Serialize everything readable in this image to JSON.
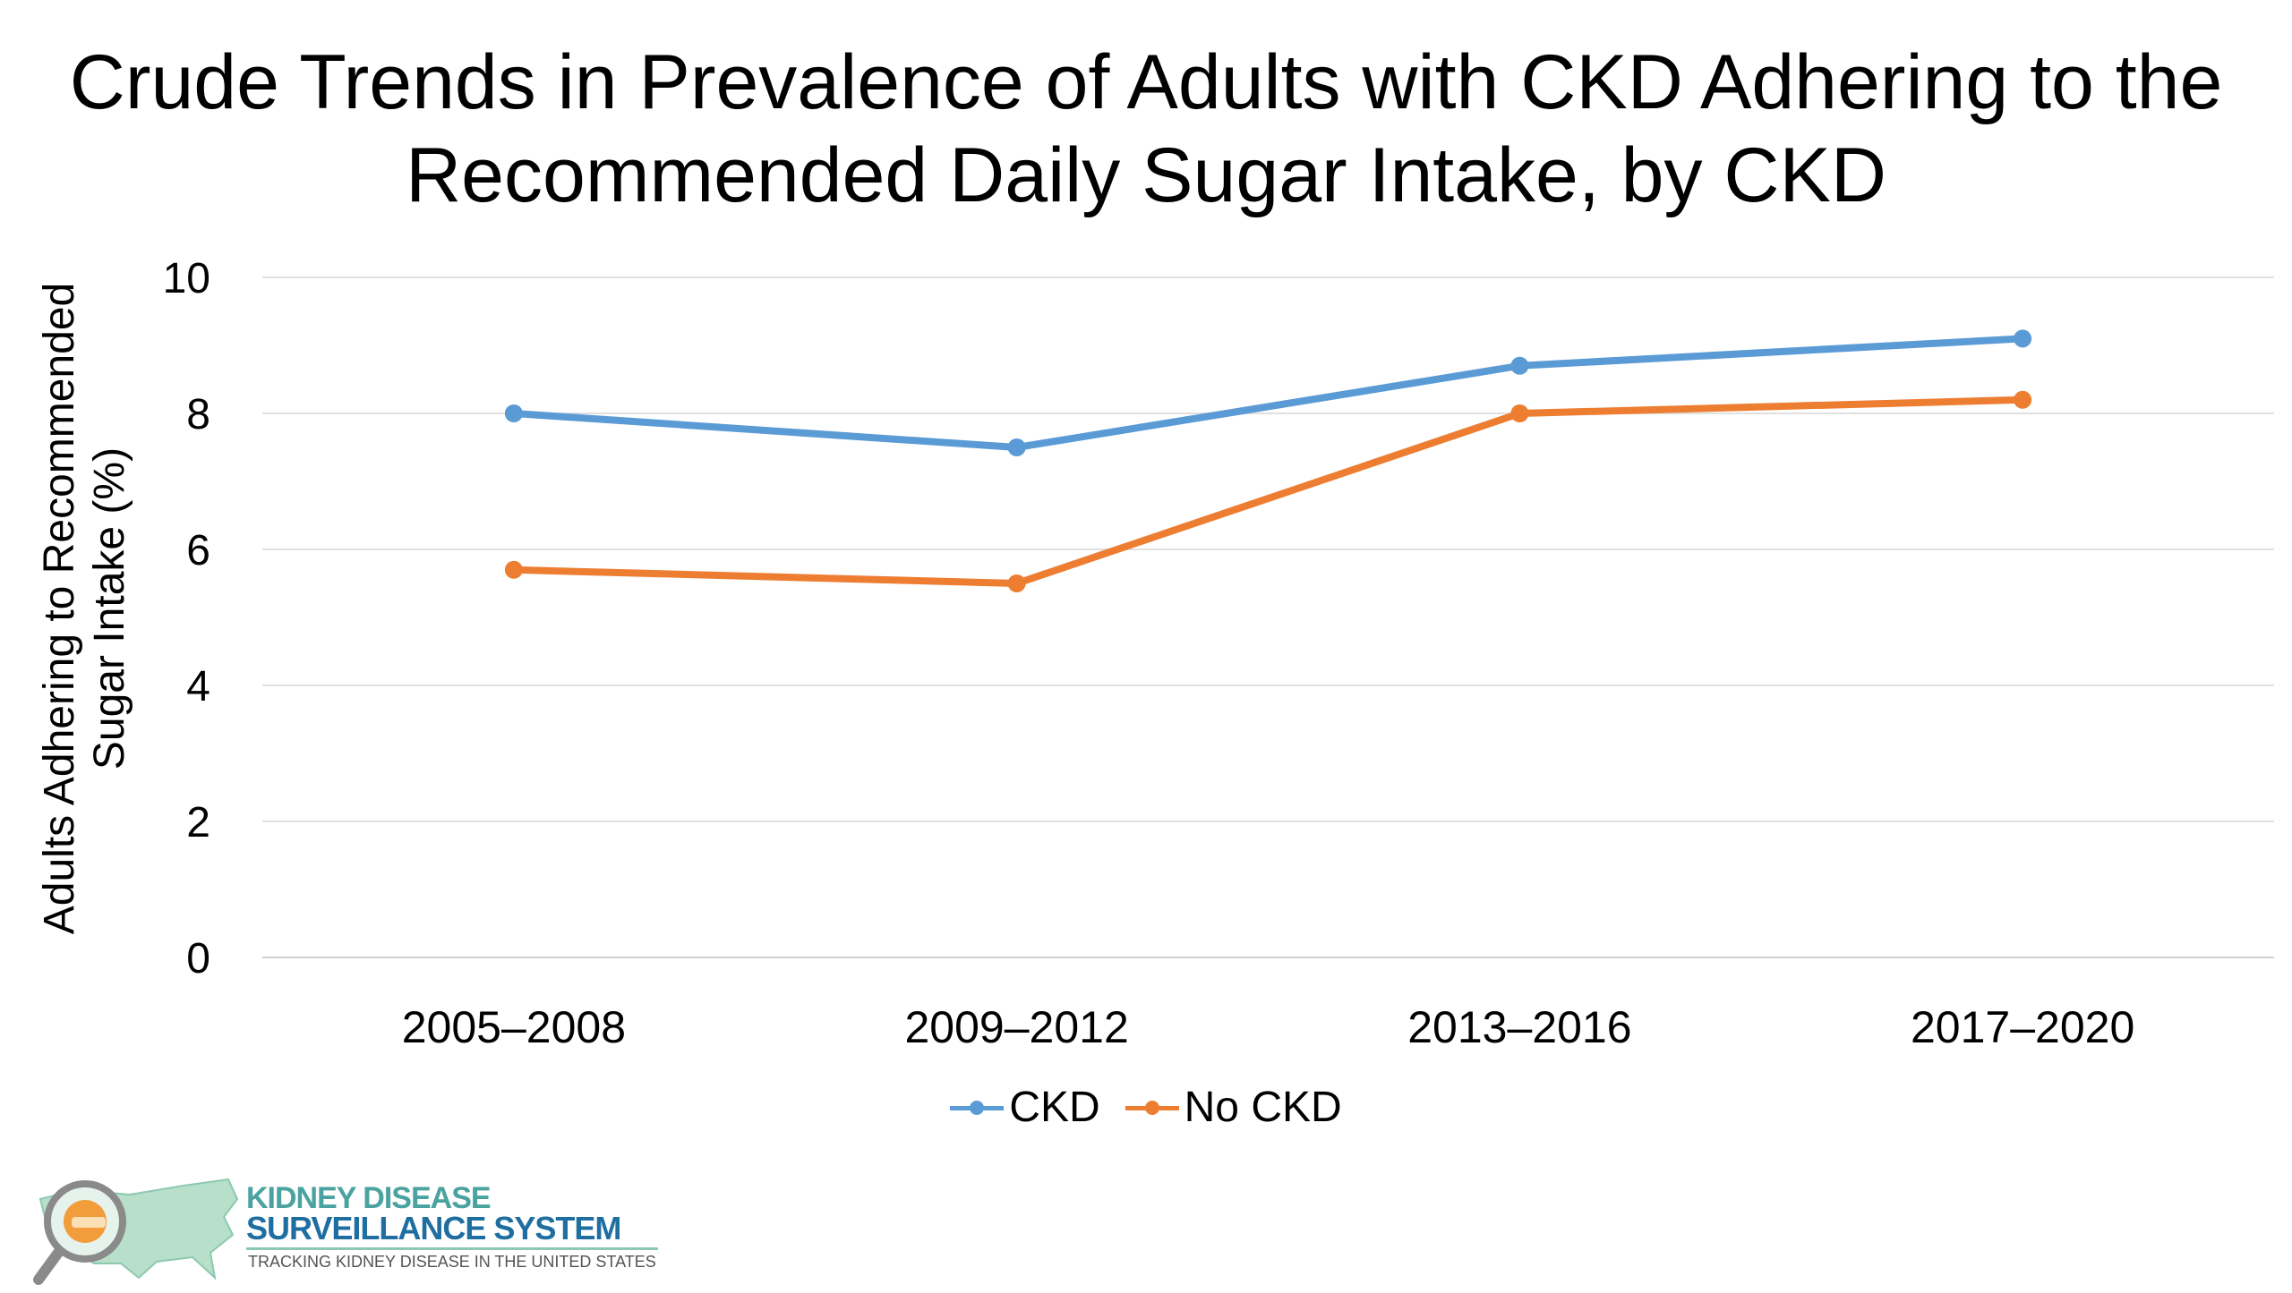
{
  "chart_data": {
    "type": "line",
    "title": [
      "Crude Trends in Prevalence of Adults with CKD Adhering to the",
      "Recommended Daily Sugar Intake, by CKD"
    ],
    "ylabel": "Adults Adhering to Recommended Sugar Intake (%)",
    "xlabel": "",
    "categories": [
      "2005–2008",
      "2009–2012",
      "2013–2016",
      "2017–2020"
    ],
    "ylim": [
      0,
      10
    ],
    "yticks": [
      "0",
      "2",
      "4",
      "6",
      "8",
      "10"
    ],
    "grid": true,
    "legend_position": "bottom",
    "series": [
      {
        "name": "CKD",
        "color": "#5b9bd5",
        "values": [
          8.0,
          7.5,
          8.7,
          9.1
        ]
      },
      {
        "name": "No CKD",
        "color": "#ed7d31",
        "values": [
          5.7,
          5.5,
          8.0,
          8.2
        ]
      }
    ]
  },
  "logo": {
    "line1": "KIDNEY DISEASE",
    "line2": "SURVEILLANCE SYSTEM",
    "line3": "TRACKING KIDNEY DISEASE IN THE UNITED STATES",
    "icon": "us-map-magnifier-icon"
  }
}
